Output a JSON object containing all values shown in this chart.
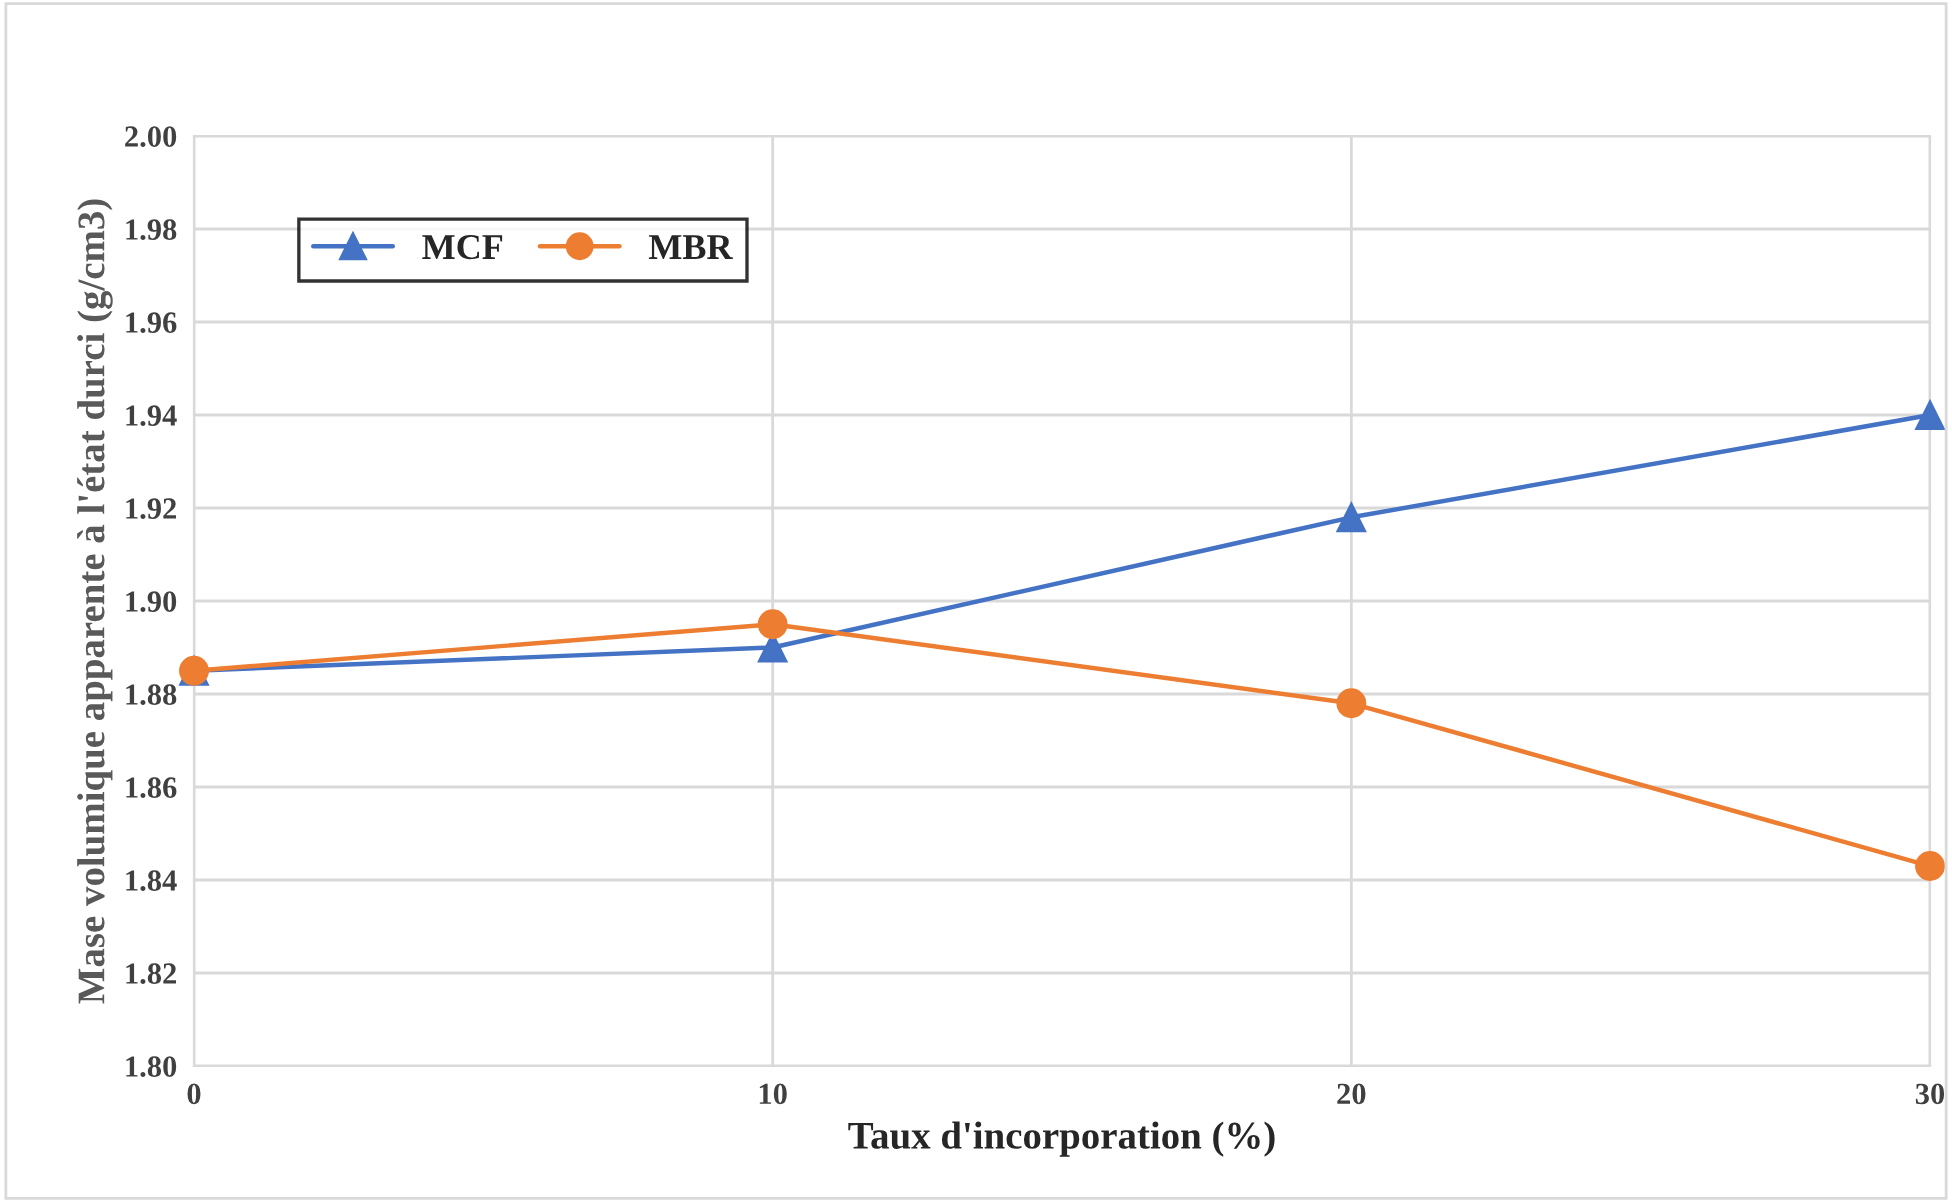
{
  "chart_data": {
    "type": "line",
    "xlabel": "Taux d'incorporation (%)",
    "ylabel": "Mase volumique apparente à l'état durci (g/cm3)",
    "x": [
      0,
      10,
      20,
      30
    ],
    "series": [
      {
        "name": "MCF",
        "color": "#4472c4",
        "marker": "triangle",
        "values": [
          1.885,
          1.89,
          1.918,
          1.94
        ]
      },
      {
        "name": "MBR",
        "color": "#ed7d31",
        "marker": "circle",
        "values": [
          1.885,
          1.895,
          1.878,
          1.843
        ]
      }
    ],
    "xlim": [
      0,
      30
    ],
    "xticks": [
      0,
      10,
      20,
      30
    ],
    "ylim": [
      1.8,
      2.0
    ],
    "yticks": [
      {
        "value": 1.8,
        "label": "1.80"
      },
      {
        "value": 1.82,
        "label": "1.82"
      },
      {
        "value": 1.84,
        "label": "1.84"
      },
      {
        "value": 1.86,
        "label": "1.86"
      },
      {
        "value": 1.88,
        "label": "1.88"
      },
      {
        "value": 1.9,
        "label": "1.90"
      },
      {
        "value": 1.92,
        "label": "1.92"
      },
      {
        "value": 1.94,
        "label": "1.94"
      },
      {
        "value": 1.96,
        "label": "1.96"
      },
      {
        "value": 1.98,
        "label": "1.98"
      },
      {
        "value": 2.0,
        "label": "2.00"
      }
    ],
    "grid": true,
    "legend": "top left",
    "line_style": "solid"
  }
}
